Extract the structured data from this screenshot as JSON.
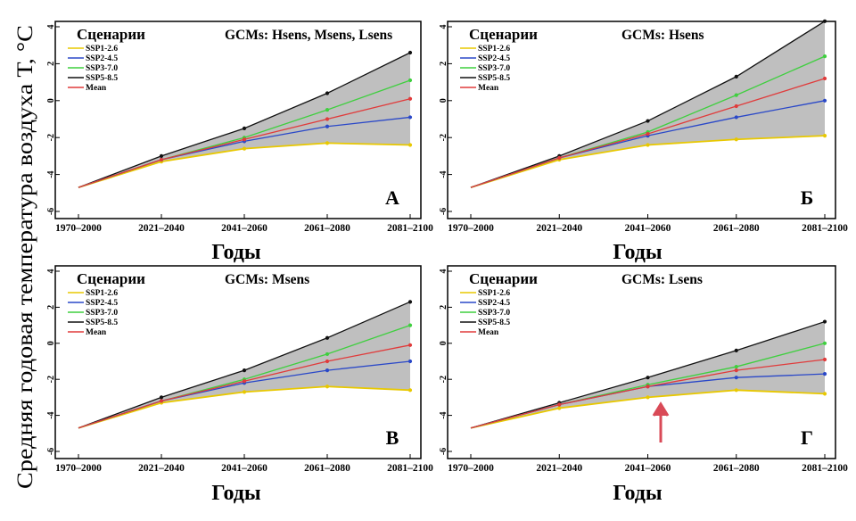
{
  "figure": {
    "y_axis_label": "Средняя годовая температура воздуха Т, °С",
    "x_axis_label": "Годы"
  },
  "colors": {
    "SSP1-2.6": "#e8c800",
    "SSP2-4.5": "#2a48c8",
    "SSP3-7.0": "#3fcf3f",
    "SSP5-8.5": "#111111",
    "Mean": "#e03b3b",
    "band": "#bfbfbf"
  },
  "legend": {
    "title": "Сценарии",
    "entries": [
      "SSP1-2.6",
      "SSP2-4.5",
      "SSP3-7.0",
      "SSP5-8.5",
      "Mean"
    ]
  },
  "chart_data": [
    {
      "type": "line",
      "panel_letter": "А",
      "title": "GCMs: Hsens, Msens, Lsens",
      "categories": [
        "1970–2000",
        "2021–2040",
        "2041–2060",
        "2061–2080",
        "2081–2100"
      ],
      "ylim": [
        -6,
        4
      ],
      "yticks": [
        "-6",
        "-4",
        "-2",
        "0",
        "2",
        "4"
      ],
      "series": [
        {
          "name": "SSP1-2.6",
          "values": [
            -4.7,
            -3.3,
            -2.6,
            -2.3,
            -2.4
          ]
        },
        {
          "name": "SSP2-4.5",
          "values": [
            -4.7,
            -3.2,
            -2.2,
            -1.4,
            -0.9
          ]
        },
        {
          "name": "SSP3-7.0",
          "values": [
            -4.7,
            -3.2,
            -2.0,
            -0.5,
            1.1
          ]
        },
        {
          "name": "SSP5-8.5",
          "values": [
            -4.7,
            -3.0,
            -1.5,
            0.4,
            2.6
          ]
        },
        {
          "name": "Mean",
          "values": [
            -4.7,
            -3.2,
            -2.1,
            -1.0,
            0.1
          ]
        }
      ]
    },
    {
      "type": "line",
      "panel_letter": "Б",
      "title": "GCMs: Hsens",
      "categories": [
        "1970–2000",
        "2021–2040",
        "2041–2060",
        "2061–2080",
        "2081–2100"
      ],
      "ylim": [
        -6,
        4
      ],
      "yticks": [
        "-6",
        "-4",
        "-2",
        "0",
        "2",
        "4"
      ],
      "series": [
        {
          "name": "SSP1-2.6",
          "values": [
            -4.7,
            -3.2,
            -2.4,
            -2.1,
            -1.9
          ]
        },
        {
          "name": "SSP2-4.5",
          "values": [
            -4.7,
            -3.1,
            -1.9,
            -0.9,
            0.0
          ]
        },
        {
          "name": "SSP3-7.0",
          "values": [
            -4.7,
            -3.1,
            -1.7,
            0.3,
            2.4
          ]
        },
        {
          "name": "SSP5-8.5",
          "values": [
            -4.7,
            -3.0,
            -1.1,
            1.3,
            4.3
          ]
        },
        {
          "name": "Mean",
          "values": [
            -4.7,
            -3.1,
            -1.8,
            -0.3,
            1.2
          ]
        }
      ]
    },
    {
      "type": "line",
      "panel_letter": "В",
      "title": "GCMs: Msens",
      "categories": [
        "1970–2000",
        "2021–2040",
        "2041–2060",
        "2061–2080",
        "2081–2100"
      ],
      "ylim": [
        -6,
        4
      ],
      "yticks": [
        "-6",
        "-4",
        "-2",
        "0",
        "2",
        "4"
      ],
      "series": [
        {
          "name": "SSP1-2.6",
          "values": [
            -4.7,
            -3.3,
            -2.7,
            -2.4,
            -2.6
          ]
        },
        {
          "name": "SSP2-4.5",
          "values": [
            -4.7,
            -3.2,
            -2.2,
            -1.5,
            -1.0
          ]
        },
        {
          "name": "SSP3-7.0",
          "values": [
            -4.7,
            -3.2,
            -2.0,
            -0.6,
            1.0
          ]
        },
        {
          "name": "SSP5-8.5",
          "values": [
            -4.7,
            -3.0,
            -1.5,
            0.3,
            2.3
          ]
        },
        {
          "name": "Mean",
          "values": [
            -4.7,
            -3.2,
            -2.1,
            -1.0,
            -0.1
          ]
        }
      ]
    },
    {
      "type": "line",
      "panel_letter": "Г",
      "title": "GCMs: Lsens",
      "categories": [
        "1970–2000",
        "2021–2040",
        "2041–2060",
        "2061–2080",
        "2081–2100"
      ],
      "ylim": [
        -6,
        4
      ],
      "yticks": [
        "-6",
        "-4",
        "-2",
        "0",
        "2",
        "4"
      ],
      "series": [
        {
          "name": "SSP1-2.6",
          "values": [
            -4.7,
            -3.6,
            -3.0,
            -2.6,
            -2.8
          ]
        },
        {
          "name": "SSP2-4.5",
          "values": [
            -4.7,
            -3.4,
            -2.4,
            -1.9,
            -1.7
          ]
        },
        {
          "name": "SSP3-7.0",
          "values": [
            -4.7,
            -3.4,
            -2.3,
            -1.3,
            0.0
          ]
        },
        {
          "name": "SSP5-8.5",
          "values": [
            -4.7,
            -3.3,
            -1.9,
            -0.4,
            1.2
          ]
        },
        {
          "name": "Mean",
          "values": [
            -4.7,
            -3.4,
            -2.4,
            -1.5,
            -0.9
          ]
        }
      ]
    }
  ]
}
